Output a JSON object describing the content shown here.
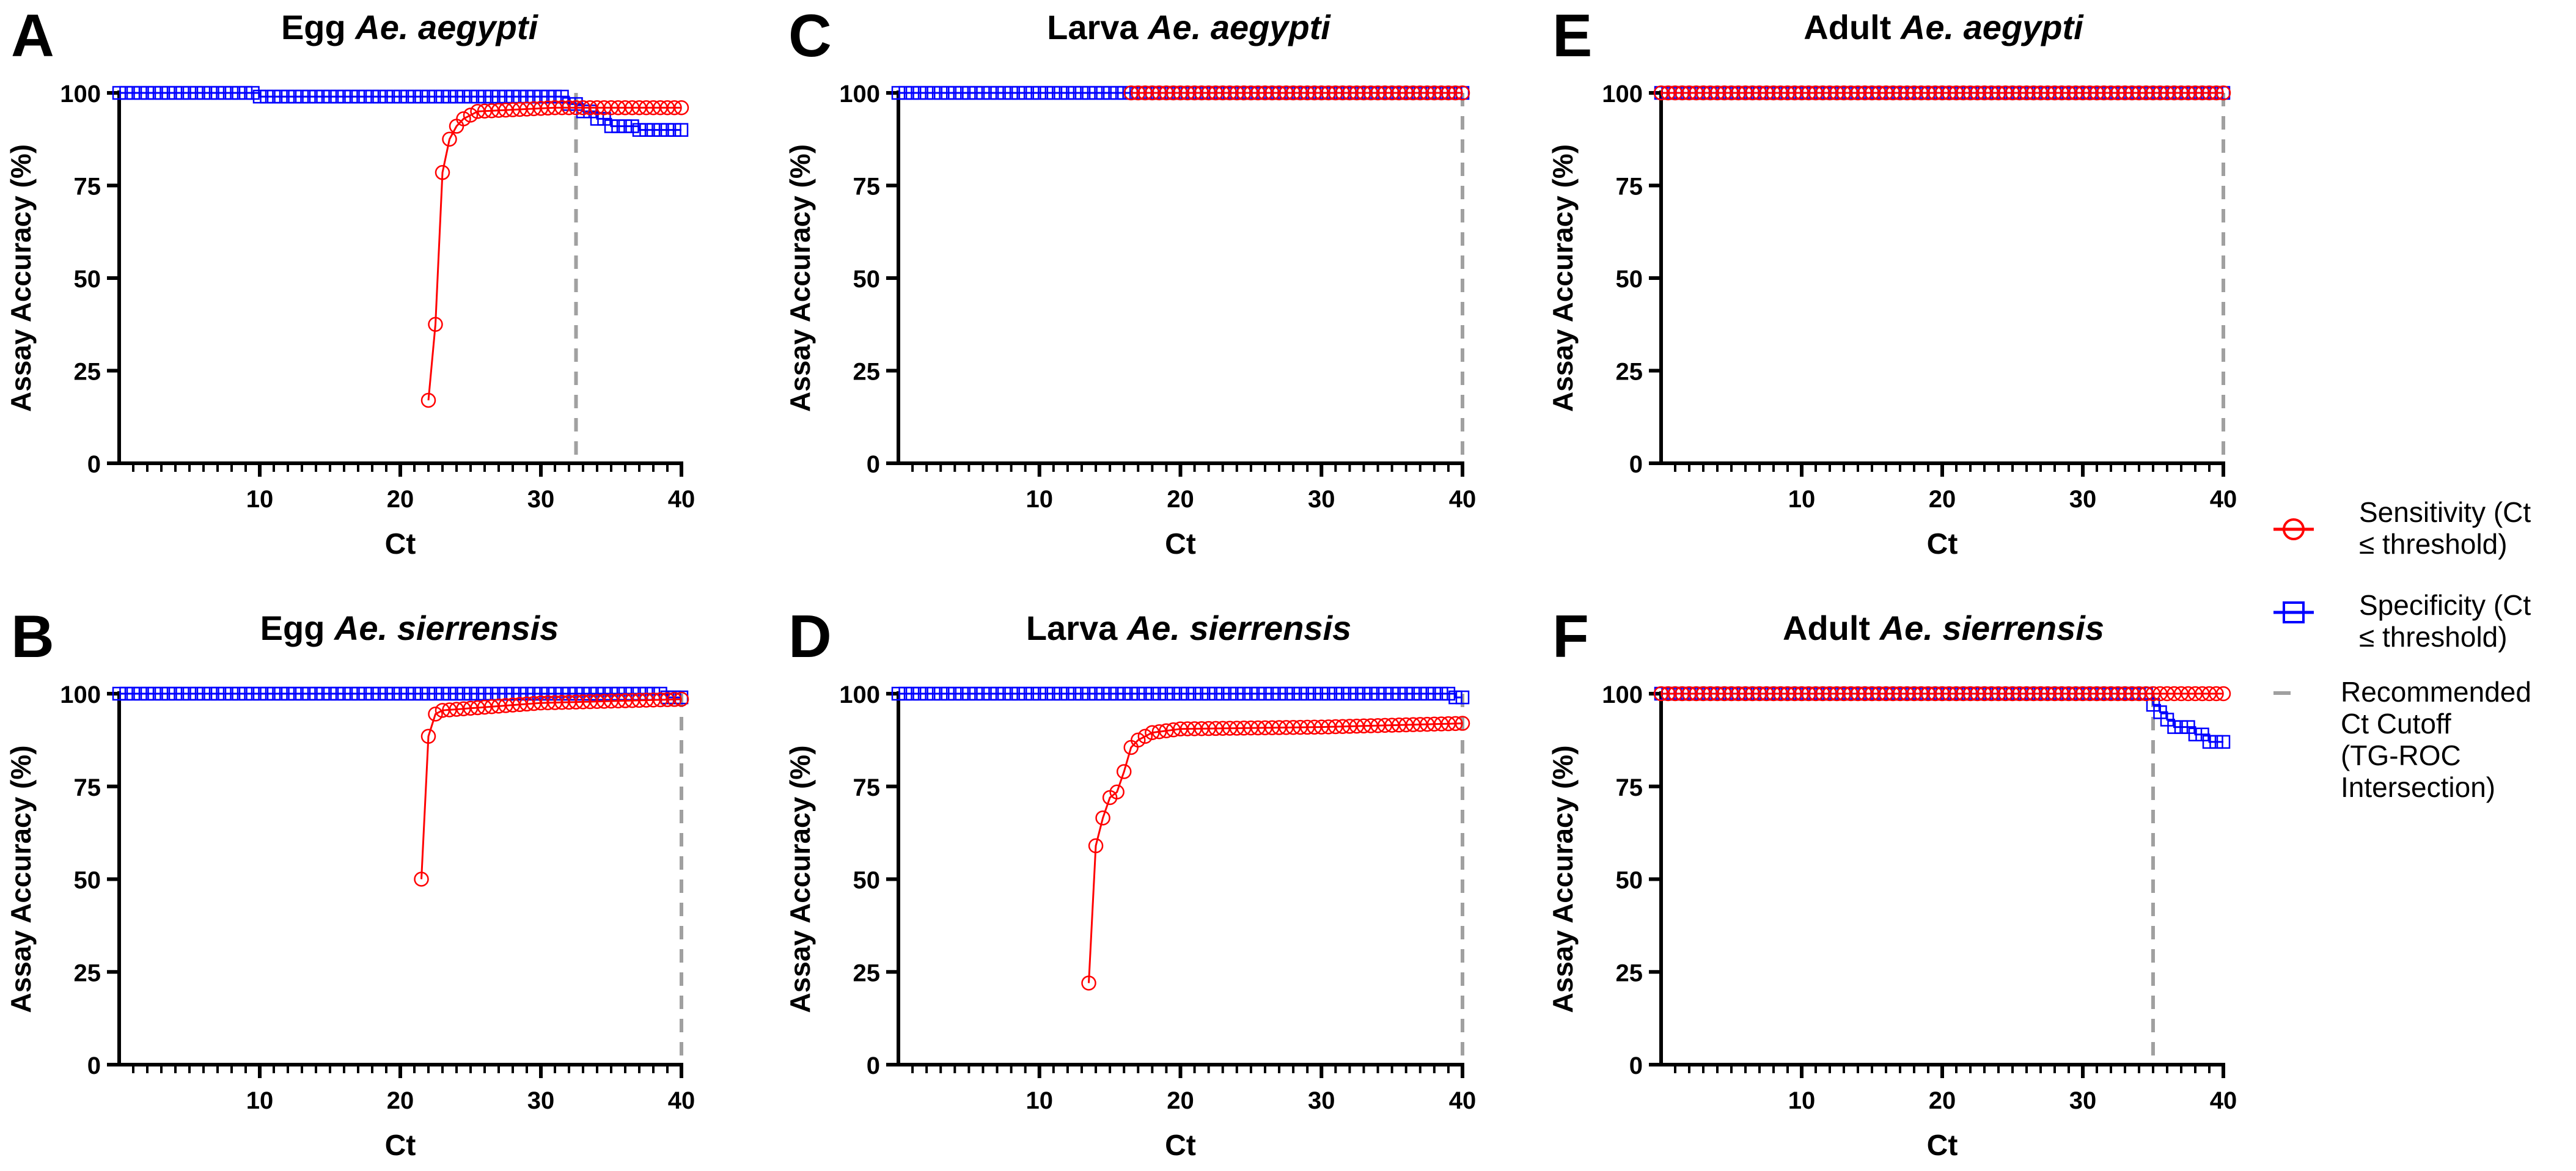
{
  "colors": {
    "sensitivity": "#ff0000",
    "specificity": "#0000ff",
    "cutoff": "#a0a0a0",
    "axis": "#000000"
  },
  "legend": {
    "sensitivity_label": [
      "Sensitivity (Ct",
      "≤ threshold)"
    ],
    "specificity_label": [
      "Specificity (Ct",
      "≤ threshold)"
    ],
    "cutoff_label": [
      "Recommended",
      "Ct Cutoff",
      "(TG-ROC",
      "Intersection)"
    ]
  },
  "chart_data": [
    {
      "panel": "A",
      "type": "line",
      "title_plain": "Egg ",
      "title_italic": "Ae. aegypti",
      "xlabel": "Ct",
      "ylabel": "Assay Accuracy (%)",
      "xlim": [
        0,
        40
      ],
      "ylim": [
        0,
        100
      ],
      "xticks": [
        10,
        20,
        30,
        40
      ],
      "yticks": [
        0,
        25,
        50,
        75,
        100
      ],
      "cutoff": 32.5,
      "sensitivity_points": [
        [
          22,
          17
        ],
        [
          22.5,
          37.5
        ],
        [
          23,
          78.5
        ],
        [
          23.5,
          87.5
        ],
        [
          24,
          91
        ],
        [
          24.5,
          93
        ],
        [
          25,
          94
        ]
      ],
      "sensitivity_plateau": [
        [
          25.5,
          95
        ],
        [
          31,
          96
        ],
        [
          40,
          96
        ]
      ],
      "specificity_steps": [
        [
          0,
          100
        ],
        [
          10,
          100
        ],
        [
          10,
          99
        ],
        [
          32,
          99
        ],
        [
          32,
          97
        ],
        [
          33,
          97
        ],
        [
          33,
          95
        ],
        [
          34,
          95
        ],
        [
          34,
          93
        ],
        [
          35,
          93
        ],
        [
          35,
          91
        ],
        [
          37,
          91
        ],
        [
          37,
          90
        ],
        [
          40,
          90
        ]
      ]
    },
    {
      "panel": "B",
      "type": "line",
      "title_plain": "Egg ",
      "title_italic": "Ae. sierrensis",
      "xlabel": "Ct",
      "ylabel": "Assay Accuracy (%)",
      "xlim": [
        0,
        40
      ],
      "ylim": [
        0,
        100
      ],
      "xticks": [
        10,
        20,
        30,
        40
      ],
      "yticks": [
        0,
        25,
        50,
        75,
        100
      ],
      "cutoff": 40,
      "sensitivity_points": [
        [
          21.5,
          50
        ],
        [
          22,
          88.5
        ],
        [
          22.5,
          94.5
        ]
      ],
      "sensitivity_plateau": [
        [
          23,
          95.5
        ],
        [
          30,
          97.5
        ],
        [
          40,
          98.5
        ]
      ],
      "specificity_steps": [
        [
          0,
          100
        ],
        [
          39,
          100
        ],
        [
          39,
          99
        ],
        [
          40,
          99
        ]
      ]
    },
    {
      "panel": "C",
      "type": "line",
      "title_plain": "Larva ",
      "title_italic": "Ae. aegypti",
      "xlabel": "Ct",
      "ylabel": "Assay Accuracy (%)",
      "xlim": [
        0,
        40
      ],
      "ylim": [
        0,
        100
      ],
      "xticks": [
        10,
        20,
        30,
        40
      ],
      "yticks": [
        0,
        25,
        50,
        75,
        100
      ],
      "cutoff": 40,
      "sensitivity_points": [],
      "sensitivity_plateau": [
        [
          16.5,
          100
        ],
        [
          40,
          100
        ]
      ],
      "specificity_steps": [
        [
          0,
          100
        ],
        [
          40,
          100
        ]
      ]
    },
    {
      "panel": "D",
      "type": "line",
      "title_plain": "Larva ",
      "title_italic": "Ae. sierrensis",
      "xlabel": "Ct",
      "ylabel": "Assay Accuracy (%)",
      "xlim": [
        0,
        40
      ],
      "ylim": [
        0,
        100
      ],
      "xticks": [
        10,
        20,
        30,
        40
      ],
      "yticks": [
        0,
        25,
        50,
        75,
        100
      ],
      "cutoff": 40,
      "sensitivity_points": [
        [
          13.5,
          22
        ],
        [
          14,
          59
        ],
        [
          14.5,
          66.5
        ],
        [
          15,
          72
        ],
        [
          15.5,
          73.5
        ],
        [
          16,
          79
        ],
        [
          16.5,
          85.5
        ],
        [
          17,
          87.5
        ],
        [
          17.5,
          88.5
        ]
      ],
      "sensitivity_plateau": [
        [
          18,
          89.5
        ],
        [
          20,
          90.5
        ],
        [
          30,
          91
        ],
        [
          40,
          92
        ]
      ],
      "specificity_steps": [
        [
          0,
          100
        ],
        [
          39.5,
          100
        ],
        [
          39.5,
          99
        ],
        [
          40,
          99
        ]
      ]
    },
    {
      "panel": "E",
      "type": "line",
      "title_plain": "Adult ",
      "title_italic": "Ae. aegypti",
      "xlabel": "Ct",
      "ylabel": "Assay Accuracy (%)",
      "xlim": [
        0,
        40
      ],
      "ylim": [
        0,
        100
      ],
      "xticks": [
        10,
        20,
        30,
        40
      ],
      "yticks": [
        0,
        25,
        50,
        75,
        100
      ],
      "cutoff": 40,
      "sensitivity_points": [],
      "sensitivity_plateau": [
        [
          0,
          100
        ],
        [
          40,
          100
        ]
      ],
      "specificity_steps": [
        [
          0,
          100
        ],
        [
          40,
          100
        ]
      ]
    },
    {
      "panel": "F",
      "type": "line",
      "title_plain": "Adult ",
      "title_italic": "Ae. sierrensis",
      "xlabel": "Ct",
      "ylabel": "Assay Accuracy (%)",
      "xlim": [
        0,
        40
      ],
      "ylim": [
        0,
        100
      ],
      "xticks": [
        10,
        20,
        30,
        40
      ],
      "yticks": [
        0,
        25,
        50,
        75,
        100
      ],
      "cutoff": 35,
      "sensitivity_points": [],
      "sensitivity_plateau": [
        [
          0,
          100
        ],
        [
          40,
          100
        ]
      ],
      "specificity_steps": [
        [
          0,
          100
        ],
        [
          35,
          100
        ],
        [
          35,
          97
        ],
        [
          35.5,
          97
        ],
        [
          35.5,
          95
        ],
        [
          36,
          95
        ],
        [
          36,
          93
        ],
        [
          36.5,
          93
        ],
        [
          36.5,
          91
        ],
        [
          38,
          91
        ],
        [
          38,
          89
        ],
        [
          39,
          89
        ],
        [
          39,
          87
        ],
        [
          40,
          87
        ]
      ]
    }
  ]
}
